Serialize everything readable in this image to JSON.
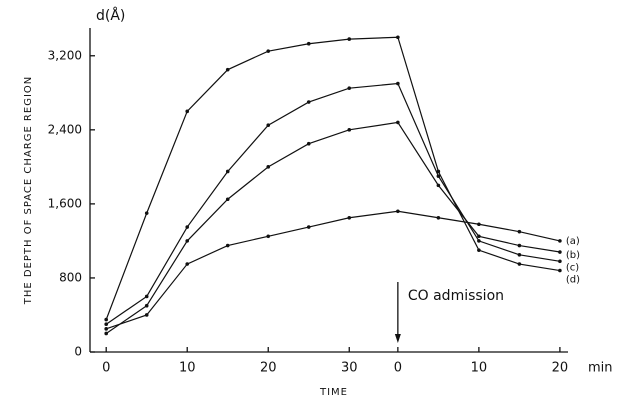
{
  "chart_data": {
    "type": "line",
    "y_unit_label": "d(Å)",
    "y_label": "THE DEPTH OF SPACE CHARGE REGION",
    "x_label": "TIME",
    "x_unit_label": "min",
    "annotation": "CO admission",
    "xlim": [
      -2,
      57
    ],
    "xticks": [
      0,
      10,
      20,
      30,
      {
        "value": 36,
        "label": "0"
      },
      {
        "value": 46,
        "label": "10"
      },
      {
        "value": 56,
        "label": "20"
      }
    ],
    "ylim": [
      0,
      3500
    ],
    "yticks": [
      0,
      800,
      {
        "value": 1600,
        "label": "1,600"
      },
      {
        "value": 2400,
        "label": "2,400"
      },
      {
        "value": 3200,
        "label": "3,200"
      }
    ],
    "x": [
      0,
      5,
      10,
      15,
      20,
      25,
      30,
      36,
      41,
      46,
      51,
      56
    ],
    "series": [
      {
        "name": "(a)",
        "color": "#111111",
        "values": [
          250,
          400,
          950,
          1150,
          1250,
          1350,
          1450,
          1520,
          1450,
          1380,
          1300,
          1200
        ]
      },
      {
        "name": "(b)",
        "color": "#111111",
        "values": [
          200,
          500,
          1200,
          1650,
          2000,
          2250,
          2400,
          2480,
          1800,
          1250,
          1150,
          1080
        ]
      },
      {
        "name": "(c)",
        "color": "#111111",
        "values": [
          300,
          600,
          1350,
          1950,
          2450,
          2700,
          2850,
          2900,
          1900,
          1200,
          1050,
          980
        ]
      },
      {
        "name": "(d)",
        "color": "#111111",
        "values": [
          350,
          1500,
          2600,
          3050,
          3250,
          3330,
          3380,
          3400,
          1950,
          1100,
          950,
          880
        ]
      }
    ]
  }
}
